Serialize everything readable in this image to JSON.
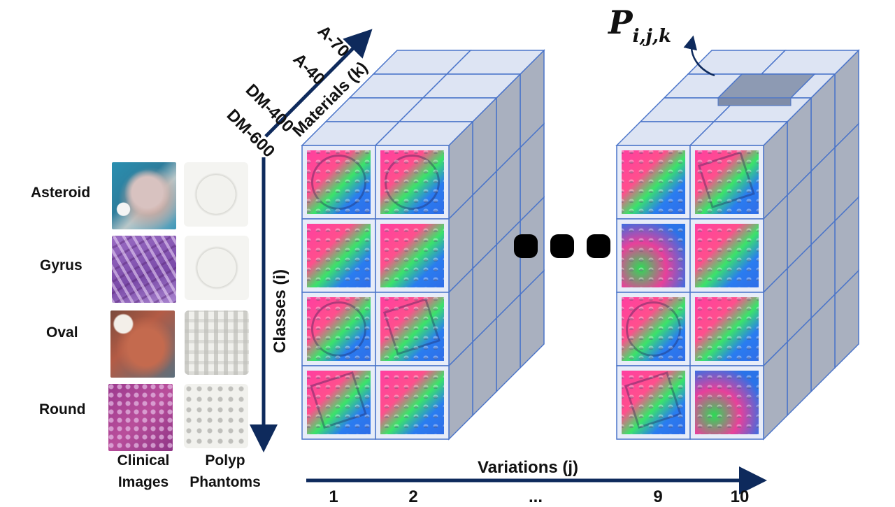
{
  "axes": {
    "classes_label": "Classes (i)",
    "materials_label": "Materials (k)",
    "variations_label": "Variations (j)",
    "point_label": "P",
    "point_subscript": "i,j,k"
  },
  "classes": [
    "Asteroid",
    "Gyrus",
    "Oval",
    "Round"
  ],
  "materials": [
    "DM-600",
    "DM-400",
    "A-40",
    "A-70"
  ],
  "variation_ticks": [
    "1",
    "2",
    "...",
    "9",
    "10"
  ],
  "columns": {
    "clinical": [
      "Clinical",
      "Images"
    ],
    "phantom": [
      "Polyp",
      "Phantoms"
    ]
  },
  "colors": {
    "arrow": "#0e2a5c",
    "cube_front": "#e7ecf8",
    "cube_top": "#dde4f3",
    "cube_side": "#a9b0bf",
    "cube_edge": "#4a74c9",
    "highlight_cell": "#8d9ab3",
    "dots": "#000000"
  },
  "icons": [
    "ellipsis-dots",
    "curved-arrow-icon"
  ]
}
